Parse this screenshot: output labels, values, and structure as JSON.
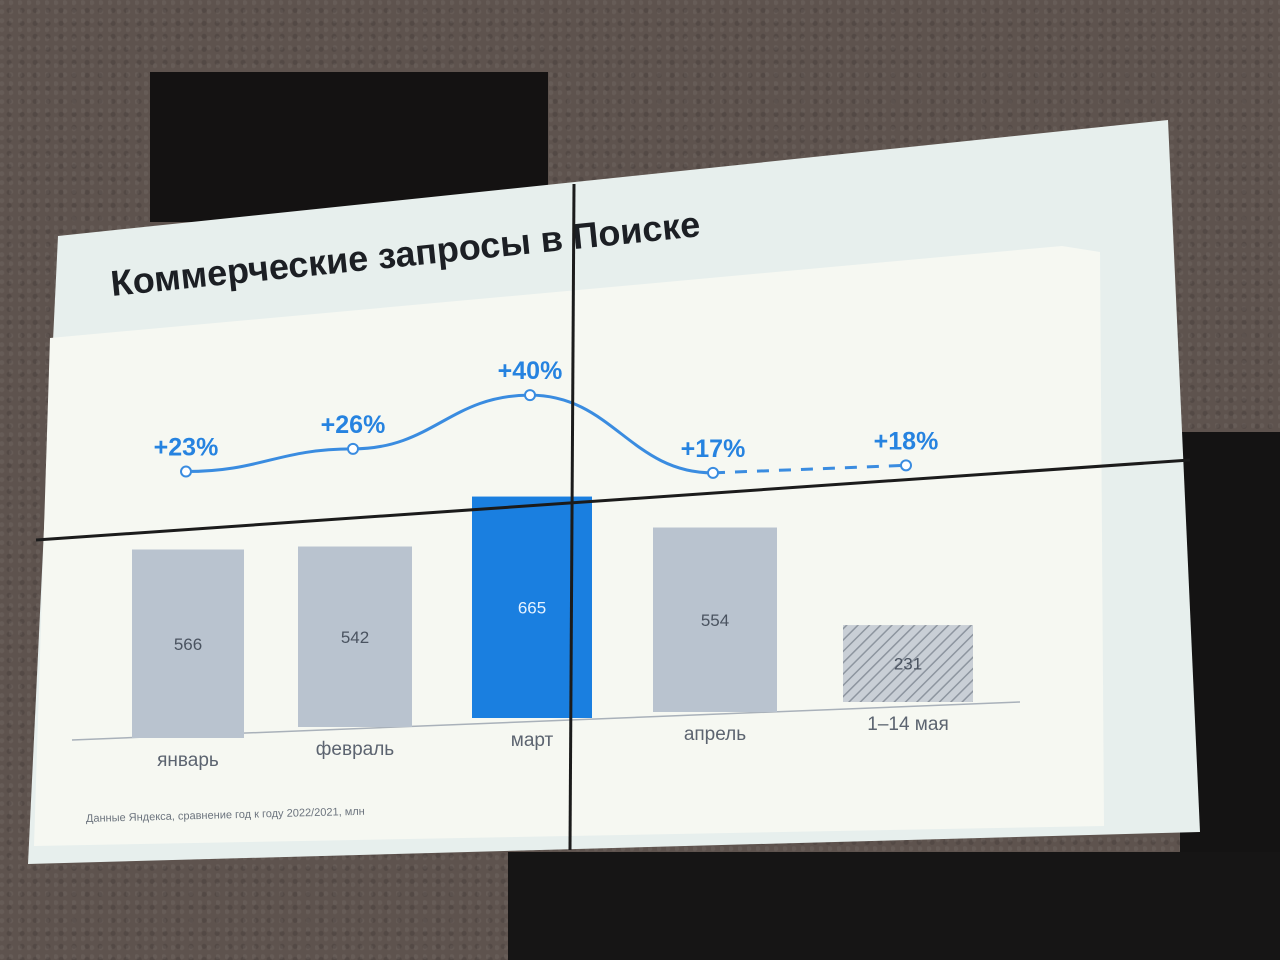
{
  "slide": {
    "title": "Коммерческие запросы в Поиске",
    "footnote": "Данные Яндекса, сравнение год к году 2022/2021, млн"
  },
  "chart_data": {
    "type": "bar",
    "title": "Коммерческие запросы в Поиске",
    "categories": [
      "январь",
      "февраль",
      "март",
      "апрель",
      "1–14 мая"
    ],
    "values": [
      566,
      542,
      665,
      554,
      231
    ],
    "value_labels": [
      "566",
      "542",
      "665",
      "554",
      "231"
    ],
    "highlighted_category": "март",
    "partial_period_category": "1–14 мая",
    "growth_line": {
      "type": "line",
      "values": [
        23,
        26,
        40,
        17,
        18
      ],
      "labels": [
        "+23%",
        "+26%",
        "+40%",
        "+17%",
        "+18%"
      ],
      "dashed_last_segment": true
    },
    "colors": {
      "bar": "#b9c3cf",
      "bar_highlight": "#1a7fe0",
      "line": "#3a8ce0",
      "label": "#2683e0"
    }
  }
}
